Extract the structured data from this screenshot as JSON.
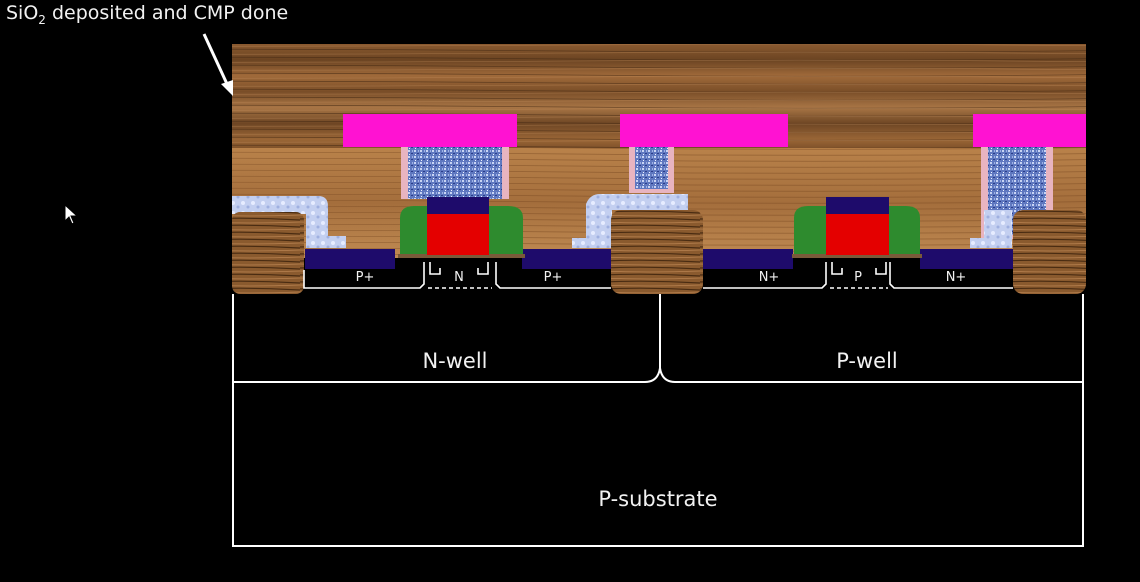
{
  "caption": {
    "prefix": "SiO",
    "subscript": "2",
    "suffix": " deposited and CMP done"
  },
  "regions": {
    "n_well": "N-well",
    "p_well": "P-well",
    "substrate": "P-substrate"
  },
  "implants": {
    "pmos_source": "P+",
    "pmos_channel": "N",
    "pmos_drain": "P+",
    "nmos_source": "N+",
    "nmos_channel": "P",
    "nmos_drain": "N+"
  },
  "colors": {
    "background": "#000000",
    "oxide_wood": "#a06a3a",
    "metal_magenta": "#ff12d2",
    "gate_poly_red": "#e40000",
    "silicide_navy": "#1e0b6b",
    "spacer_green": "#2e8b2e",
    "contact_plug_blue": "#6d86c8",
    "liner_pink": "#e8b4c0",
    "sti_light_blue": "#bcc9ef",
    "outline_white": "#ffffff"
  }
}
